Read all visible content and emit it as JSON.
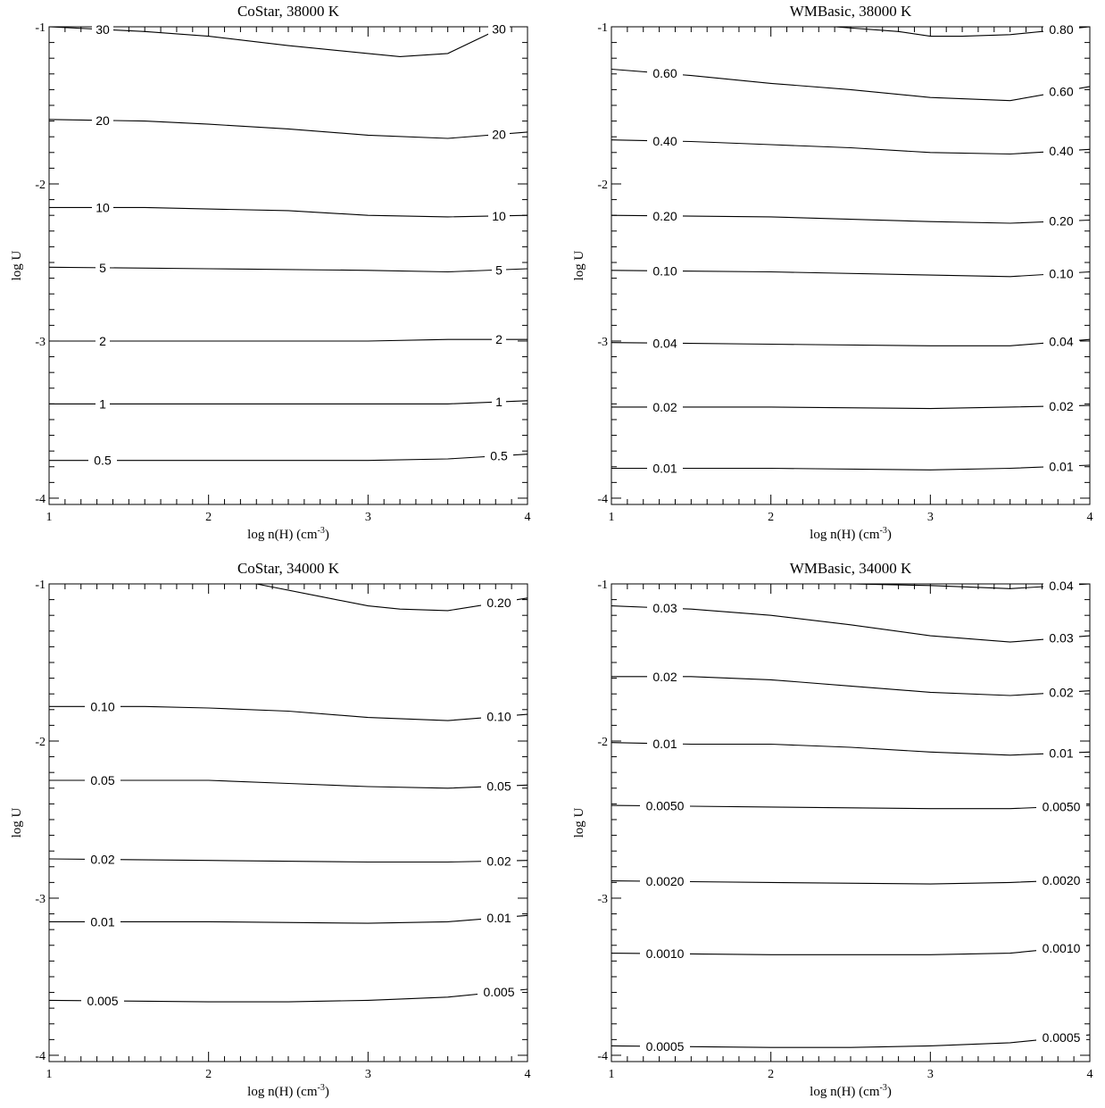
{
  "chart_data": [
    {
      "type": "contour",
      "title": "CoStar, 38000 K",
      "xlabel": "log n(H) (cm",
      "xlabel_sup": "-3",
      "xlabel_close": ")",
      "ylabel": "log U",
      "xlim": [
        1,
        4
      ],
      "ylim": [
        -4.04,
        -1
      ],
      "xticks": [
        "1",
        "2",
        "3",
        "4"
      ],
      "yticks": [
        "-1",
        "-2",
        "-3",
        "-4"
      ],
      "series": [
        {
          "label": "30",
          "x": [
            1.0,
            1.6,
            2.0,
            2.5,
            3.0,
            3.2,
            3.5,
            3.85
          ],
          "y": [
            -0.99,
            -1.03,
            -1.06,
            -1.12,
            -1.17,
            -1.19,
            -1.17,
            -0.99
          ]
        },
        {
          "label": "20",
          "x": [
            1.0,
            1.6,
            2.0,
            2.5,
            3.0,
            3.5,
            4.0
          ],
          "y": [
            -1.59,
            -1.6,
            -1.62,
            -1.65,
            -1.69,
            -1.71,
            -1.67
          ]
        },
        {
          "label": "10",
          "x": [
            1.0,
            1.6,
            2.0,
            2.5,
            3.0,
            3.5,
            4.0
          ],
          "y": [
            -2.15,
            -2.15,
            -2.16,
            -2.17,
            -2.2,
            -2.21,
            -2.2
          ]
        },
        {
          "label": "5",
          "x": [
            1.0,
            2.0,
            3.0,
            3.5,
            4.0
          ],
          "y": [
            -2.53,
            -2.54,
            -2.55,
            -2.56,
            -2.54
          ]
        },
        {
          "label": "2",
          "x": [
            1.0,
            2.0,
            3.0,
            3.5,
            4.0
          ],
          "y": [
            -3.0,
            -3.0,
            -3.0,
            -2.99,
            -2.99
          ]
        },
        {
          "label": "1",
          "x": [
            1.0,
            2.0,
            3.0,
            3.5,
            4.0
          ],
          "y": [
            -3.4,
            -3.4,
            -3.4,
            -3.4,
            -3.38
          ]
        },
        {
          "label": "0.5",
          "x": [
            1.0,
            2.0,
            3.0,
            3.5,
            4.0
          ],
          "y": [
            -3.76,
            -3.76,
            -3.76,
            -3.75,
            -3.72
          ]
        }
      ]
    },
    {
      "type": "contour",
      "title": "WMBasic, 38000 K",
      "xlabel": "log n(H) (cm",
      "xlabel_sup": "-3",
      "xlabel_close": ")",
      "ylabel": "log U",
      "xlim": [
        1,
        4
      ],
      "ylim": [
        -4.04,
        -1
      ],
      "xticks": [
        "1",
        "2",
        "3",
        "4"
      ],
      "yticks": [
        "-1",
        "-2",
        "-3",
        "-4"
      ],
      "series": [
        {
          "label": "0.80",
          "x": [
            2.4,
            2.8,
            3.0,
            3.2,
            3.5,
            4.0
          ],
          "y": [
            -0.99,
            -1.03,
            -1.06,
            -1.06,
            -1.05,
            -0.97
          ]
        },
        {
          "label": "0.60",
          "x": [
            1.0,
            1.5,
            2.0,
            2.5,
            3.0,
            3.5,
            4.0
          ],
          "y": [
            -1.27,
            -1.31,
            -1.36,
            -1.4,
            -1.45,
            -1.47,
            -1.38
          ]
        },
        {
          "label": "0.40",
          "x": [
            1.0,
            1.5,
            2.0,
            2.5,
            3.0,
            3.5,
            4.0
          ],
          "y": [
            -1.72,
            -1.73,
            -1.75,
            -1.77,
            -1.8,
            -1.81,
            -1.78
          ]
        },
        {
          "label": "0.20",
          "x": [
            1.0,
            2.0,
            3.0,
            3.5,
            4.0
          ],
          "y": [
            -2.2,
            -2.21,
            -2.24,
            -2.25,
            -2.23
          ]
        },
        {
          "label": "0.10",
          "x": [
            1.0,
            2.0,
            3.0,
            3.5,
            4.0
          ],
          "y": [
            -2.55,
            -2.56,
            -2.58,
            -2.59,
            -2.56
          ]
        },
        {
          "label": "0.04",
          "x": [
            1.0,
            2.0,
            3.0,
            3.5,
            4.0
          ],
          "y": [
            -3.01,
            -3.02,
            -3.03,
            -3.03,
            -2.99
          ]
        },
        {
          "label": "0.02",
          "x": [
            1.0,
            2.0,
            3.0,
            3.5,
            4.0
          ],
          "y": [
            -3.42,
            -3.42,
            -3.43,
            -3.42,
            -3.41
          ]
        },
        {
          "label": "0.01",
          "x": [
            1.0,
            2.0,
            3.0,
            3.5,
            4.0
          ],
          "y": [
            -3.81,
            -3.81,
            -3.82,
            -3.81,
            -3.79
          ]
        }
      ]
    },
    {
      "type": "contour",
      "title": "CoStar, 34000 K",
      "xlabel": "log n(H) (cm",
      "xlabel_sup": "-3",
      "xlabel_close": ")",
      "ylabel": "log U",
      "xlim": [
        1,
        4
      ],
      "ylim": [
        -4.04,
        -1
      ],
      "xticks": [
        "1",
        "2",
        "3",
        "4"
      ],
      "yticks": [
        "-1",
        "-2",
        "-3",
        "-4"
      ],
      "series": [
        {
          "label": "0.20",
          "x": [
            2.3,
            2.7,
            3.0,
            3.2,
            3.5,
            4.0
          ],
          "y": [
            -0.99,
            -1.08,
            -1.14,
            -1.16,
            -1.17,
            -1.09
          ]
        },
        {
          "label": "0.10",
          "x": [
            1.0,
            1.6,
            2.0,
            2.5,
            3.0,
            3.5,
            4.0
          ],
          "y": [
            -1.78,
            -1.78,
            -1.79,
            -1.81,
            -1.85,
            -1.87,
            -1.83
          ]
        },
        {
          "label": "0.05",
          "x": [
            1.0,
            2.0,
            2.5,
            3.0,
            3.5,
            4.0
          ],
          "y": [
            -2.25,
            -2.25,
            -2.27,
            -2.29,
            -2.3,
            -2.28
          ]
        },
        {
          "label": "0.02",
          "x": [
            1.0,
            2.0,
            3.0,
            3.5,
            4.0
          ],
          "y": [
            -2.75,
            -2.76,
            -2.77,
            -2.77,
            -2.76
          ]
        },
        {
          "label": "0.01",
          "x": [
            1.0,
            2.0,
            3.0,
            3.5,
            4.0
          ],
          "y": [
            -3.15,
            -3.15,
            -3.16,
            -3.15,
            -3.11
          ]
        },
        {
          "label": "0.005",
          "x": [
            1.0,
            2.0,
            2.5,
            3.0,
            3.5,
            4.0
          ],
          "y": [
            -3.65,
            -3.66,
            -3.66,
            -3.65,
            -3.63,
            -3.58
          ]
        }
      ]
    },
    {
      "type": "contour",
      "title": "WMBasic, 34000 K",
      "xlabel": "log n(H) (cm",
      "xlabel_sup": "-3",
      "xlabel_close": ")",
      "ylabel": "log U",
      "xlim": [
        1,
        4
      ],
      "ylim": [
        -4.04,
        -1
      ],
      "xticks": [
        "1",
        "2",
        "3",
        "4"
      ],
      "yticks": [
        "-1",
        "-2",
        "-3",
        "-4"
      ],
      "series": [
        {
          "label": "0.04",
          "x": [
            2.5,
            3.0,
            3.5,
            4.0
          ],
          "y": [
            -0.99,
            -1.01,
            -1.03,
            -0.97
          ]
        },
        {
          "label": "0.03",
          "x": [
            1.0,
            1.5,
            2.0,
            2.5,
            3.0,
            3.5,
            4.0
          ],
          "y": [
            -1.14,
            -1.16,
            -1.2,
            -1.26,
            -1.33,
            -1.37,
            -1.33
          ]
        },
        {
          "label": "0.02",
          "x": [
            1.0,
            1.5,
            2.0,
            2.5,
            3.0,
            3.5,
            4.0
          ],
          "y": [
            -1.59,
            -1.59,
            -1.61,
            -1.65,
            -1.69,
            -1.71,
            -1.68
          ]
        },
        {
          "label": "0.01",
          "x": [
            1.0,
            1.5,
            2.0,
            2.5,
            3.0,
            3.5,
            4.0
          ],
          "y": [
            -2.01,
            -2.02,
            -2.02,
            -2.04,
            -2.07,
            -2.09,
            -2.07
          ]
        },
        {
          "label": "0.0050",
          "x": [
            1.0,
            2.0,
            3.0,
            3.5,
            4.0
          ],
          "y": [
            -2.41,
            -2.42,
            -2.43,
            -2.43,
            -2.41
          ]
        },
        {
          "label": "0.0020",
          "x": [
            1.0,
            2.0,
            3.0,
            3.5,
            4.0
          ],
          "y": [
            -2.89,
            -2.9,
            -2.91,
            -2.9,
            -2.88
          ]
        },
        {
          "label": "0.0010",
          "x": [
            1.0,
            2.0,
            3.0,
            3.5,
            4.0
          ],
          "y": [
            -3.35,
            -3.36,
            -3.36,
            -3.35,
            -3.3
          ]
        },
        {
          "label": "0.0005",
          "x": [
            1.0,
            2.0,
            2.5,
            3.0,
            3.5,
            4.0
          ],
          "y": [
            -3.94,
            -3.95,
            -3.95,
            -3.94,
            -3.92,
            -3.87
          ]
        }
      ]
    }
  ]
}
